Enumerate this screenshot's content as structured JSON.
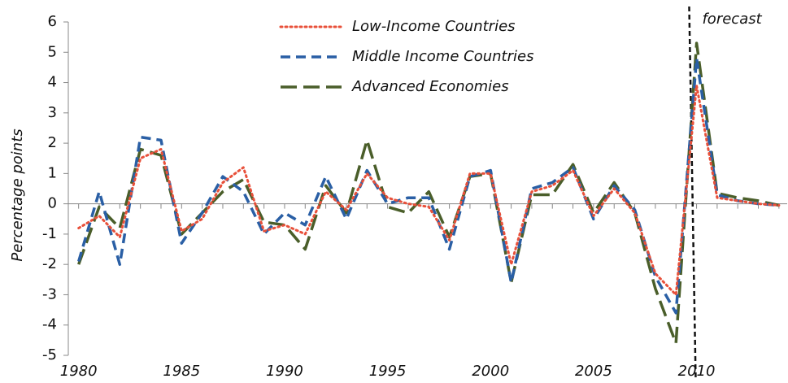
{
  "chart_data": {
    "type": "line",
    "y_label": "Percentage points",
    "x": [
      1980,
      1981,
      1982,
      1983,
      1984,
      1985,
      1986,
      1987,
      1988,
      1989,
      1990,
      1991,
      1992,
      1993,
      1994,
      1995,
      1996,
      1997,
      1998,
      1999,
      2000,
      2001,
      2002,
      2003,
      2004,
      2005,
      2006,
      2007,
      2008,
      2009,
      2010,
      2011,
      2012,
      2013,
      2014
    ],
    "series": [
      {
        "name": "Low-Income Countries",
        "color": "#e8503a",
        "line_style": "dotted",
        "values": [
          -0.8,
          -0.4,
          -1.1,
          1.5,
          1.8,
          -0.9,
          -0.5,
          0.7,
          1.2,
          -0.9,
          -0.7,
          -1.0,
          0.4,
          -0.2,
          1.0,
          0.2,
          0.0,
          -0.1,
          -1.2,
          1.0,
          1.0,
          -2.0,
          0.4,
          0.6,
          1.1,
          -0.4,
          0.5,
          -0.3,
          -2.3,
          -3.0,
          3.9,
          0.2,
          0.1,
          0.0,
          -0.05
        ]
      },
      {
        "name": "Middle Income Countries",
        "color": "#2a5fa5",
        "line_style": "dashed",
        "values": [
          -1.9,
          0.4,
          -2.0,
          2.2,
          2.1,
          -1.3,
          -0.3,
          0.9,
          0.4,
          -1.0,
          -0.3,
          -0.7,
          0.9,
          -0.5,
          1.1,
          0.0,
          0.2,
          0.2,
          -1.5,
          0.9,
          1.1,
          -2.6,
          0.5,
          0.7,
          1.2,
          -0.5,
          0.6,
          -0.2,
          -2.4,
          -3.6,
          4.8,
          0.3,
          0.1,
          0.0,
          -0.05
        ]
      },
      {
        "name": "Advanced Economies",
        "color": "#4a5e2a",
        "line_style": "longdash",
        "values": [
          -2.0,
          -0.1,
          -0.8,
          1.8,
          1.6,
          -1.0,
          -0.3,
          0.4,
          0.8,
          -0.6,
          -0.7,
          -1.5,
          0.6,
          -0.3,
          2.1,
          -0.1,
          -0.3,
          0.4,
          -1.1,
          0.9,
          1.0,
          -2.6,
          0.3,
          0.3,
          1.3,
          -0.3,
          0.7,
          -0.3,
          -2.8,
          -4.6,
          5.3,
          0.35,
          0.2,
          0.1,
          -0.05
        ]
      }
    ],
    "xlim": [
      1979.5,
      2014.4
    ],
    "xticks": [
      1980,
      1985,
      1990,
      1995,
      2000,
      2005,
      2010
    ],
    "ylim": [
      -5,
      6
    ],
    "yticks": [
      -5,
      -4,
      -3,
      -2,
      -1,
      0,
      1,
      2,
      3,
      4,
      5,
      6
    ],
    "annotation": {
      "text": "forecast",
      "x": 2009.8
    }
  }
}
